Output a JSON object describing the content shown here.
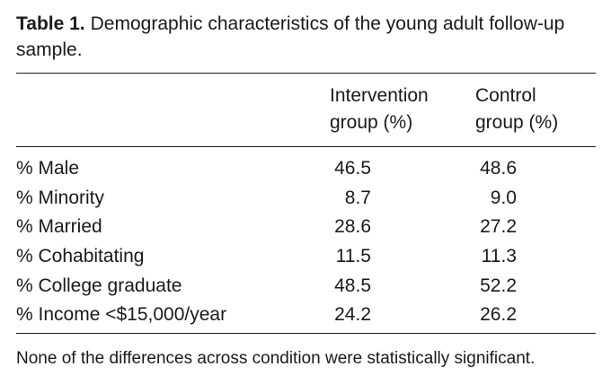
{
  "caption": {
    "label": "Table 1.",
    "text": "Demographic characteristics of the young adult follow-up sample."
  },
  "columns": {
    "intervention": [
      "Intervention",
      "group (%)"
    ],
    "control": [
      "Control",
      "group (%)"
    ]
  },
  "rows": [
    {
      "label": "% Male",
      "intervention": "46.5",
      "control": "48.6"
    },
    {
      "label": "% Minority",
      "intervention": "8.7",
      "control": "9.0"
    },
    {
      "label": "% Married",
      "intervention": "28.6",
      "control": "27.2"
    },
    {
      "label": "% Cohabitating",
      "intervention": "11.5",
      "control": "11.3"
    },
    {
      "label": "% College graduate",
      "intervention": "48.5",
      "control": "52.2"
    },
    {
      "label": "% Income <$15,000/year",
      "intervention": "24.2",
      "control": "26.2"
    }
  ],
  "note": "None of the differences across condition were statistically significant."
}
